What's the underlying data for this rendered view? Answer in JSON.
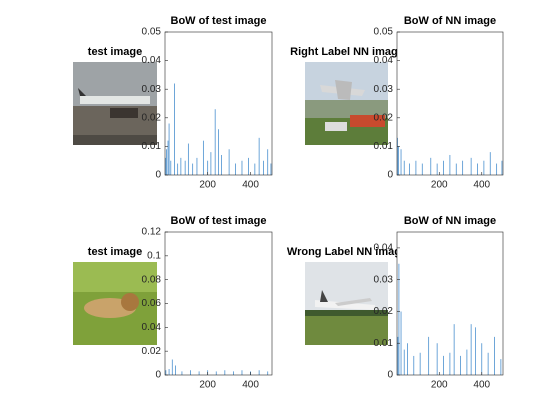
{
  "images": [
    {
      "title": "test image"
    },
    {
      "title": "Right Label NN image"
    },
    {
      "title": "test image"
    },
    {
      "title": "Wrong Label NN image"
    }
  ],
  "chart_data": [
    {
      "type": "bar",
      "title": "BoW of test image",
      "color": "#4a90cf",
      "x": [
        3,
        8,
        15,
        20,
        28,
        45,
        60,
        75,
        95,
        110,
        130,
        150,
        180,
        200,
        215,
        235,
        250,
        265,
        300,
        330,
        360,
        390,
        420,
        440,
        460,
        480,
        495
      ],
      "values": [
        0.006,
        0.009,
        0.012,
        0.018,
        0.005,
        0.032,
        0.004,
        0.006,
        0.005,
        0.011,
        0.004,
        0.006,
        0.012,
        0.005,
        0.008,
        0.023,
        0.016,
        0.007,
        0.009,
        0.004,
        0.005,
        0.006,
        0.004,
        0.013,
        0.005,
        0.009,
        0.004
      ],
      "xlim": [
        1,
        500
      ],
      "xticks": [
        200,
        400
      ],
      "ylim": [
        0,
        0.05
      ],
      "yticks": [
        0,
        0.01,
        0.02,
        0.03,
        0.04,
        0.05
      ]
    },
    {
      "type": "bar",
      "title": "BoW of NN image",
      "color": "#4a90cf",
      "x": [
        3,
        8,
        20,
        35,
        60,
        90,
        120,
        160,
        190,
        220,
        250,
        280,
        310,
        350,
        380,
        410,
        440,
        470,
        495
      ],
      "values": [
        0.013,
        0.01,
        0.009,
        0.005,
        0.004,
        0.005,
        0.004,
        0.006,
        0.004,
        0.005,
        0.007,
        0.004,
        0.005,
        0.006,
        0.004,
        0.005,
        0.008,
        0.004,
        0.005
      ],
      "xlim": [
        1,
        500
      ],
      "xticks": [
        200,
        400
      ],
      "ylim": [
        0,
        0.05
      ],
      "yticks": [
        0,
        0.01,
        0.02,
        0.03,
        0.04,
        0.05
      ]
    },
    {
      "type": "bar",
      "title": "BoW of test image",
      "color": "#4a90cf",
      "x": [
        5,
        20,
        35,
        50,
        80,
        120,
        160,
        200,
        240,
        280,
        320,
        360,
        400,
        440,
        480
      ],
      "values": [
        0.004,
        0.005,
        0.013,
        0.008,
        0.003,
        0.004,
        0.003,
        0.004,
        0.003,
        0.004,
        0.003,
        0.004,
        0.003,
        0.004,
        0.003
      ],
      "xlim": [
        1,
        500
      ],
      "xticks": [
        200,
        400
      ],
      "ylim": [
        0,
        0.12
      ],
      "yticks": [
        0,
        0.02,
        0.04,
        0.06,
        0.08,
        0.1,
        0.12
      ]
    },
    {
      "type": "bar",
      "title": "BoW of NN image",
      "color": "#4a90cf",
      "x": [
        5,
        10,
        20,
        35,
        50,
        80,
        110,
        150,
        190,
        220,
        250,
        270,
        300,
        330,
        350,
        370,
        400,
        430,
        460,
        490
      ],
      "values": [
        0.012,
        0.035,
        0.02,
        0.008,
        0.01,
        0.006,
        0.007,
        0.012,
        0.01,
        0.006,
        0.007,
        0.016,
        0.006,
        0.008,
        0.016,
        0.015,
        0.01,
        0.007,
        0.012,
        0.005
      ],
      "xlim": [
        1,
        500
      ],
      "xticks": [
        200,
        400
      ],
      "ylim": [
        0,
        0.045
      ],
      "yticks": [
        0,
        0.01,
        0.02,
        0.03,
        0.04
      ]
    }
  ]
}
